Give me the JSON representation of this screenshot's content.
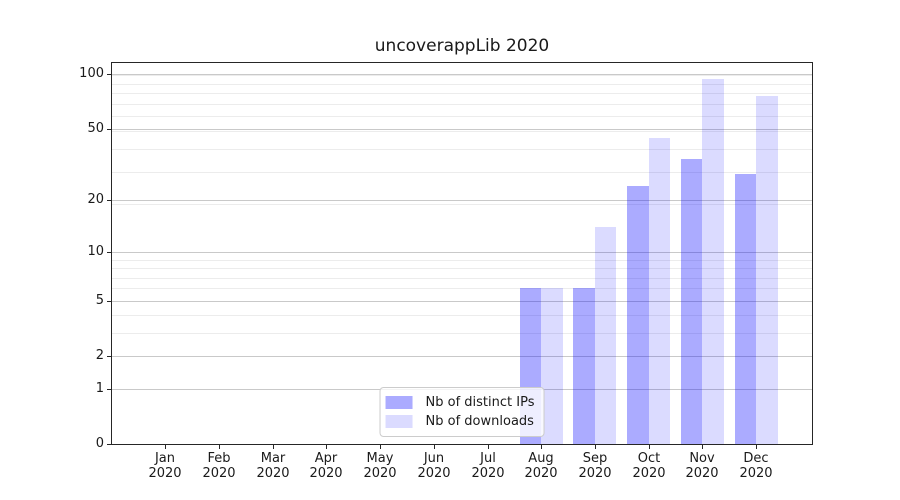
{
  "title": "uncoverappLib 2020",
  "chart_data": {
    "type": "bar",
    "title": "uncoverappLib 2020",
    "categories": [
      "Jan 2020",
      "Feb 2020",
      "Mar 2020",
      "Apr 2020",
      "May 2020",
      "Jun 2020",
      "Jul 2020",
      "Aug 2020",
      "Sep 2020",
      "Oct 2020",
      "Nov 2020",
      "Dec 2020"
    ],
    "series": [
      {
        "name": "Nb of distinct IPs",
        "color": "rgba(0,0,255,0.33)",
        "values": [
          0,
          0,
          0,
          0,
          0,
          0,
          0,
          6,
          6,
          24,
          34,
          28
        ]
      },
      {
        "name": "Nb of downloads",
        "color": "rgba(0,0,255,0.14)",
        "values": [
          0,
          0,
          0,
          0,
          0,
          0,
          0,
          6,
          14,
          45,
          95,
          76
        ]
      }
    ],
    "xlabel": "",
    "ylabel": "",
    "yscale": "log1p",
    "yticks": [
      0,
      1,
      2,
      5,
      10,
      20,
      50,
      100
    ],
    "ylim": [
      0,
      115.6
    ],
    "grid": true,
    "legend_position": "lower center",
    "bar_width_fraction": 0.4
  },
  "colors": {
    "bar_distinct_ips": "rgba(0,0,255,0.33)",
    "bar_downloads": "rgba(0,0,255,0.14)",
    "major_grid": "#c9c9c9",
    "minor_grid": "#ececec",
    "spine": "#262626",
    "text": "#1a1a1a",
    "legend_border": "#cccccc",
    "legend_bg": "rgba(255,255,255,0.8)"
  }
}
